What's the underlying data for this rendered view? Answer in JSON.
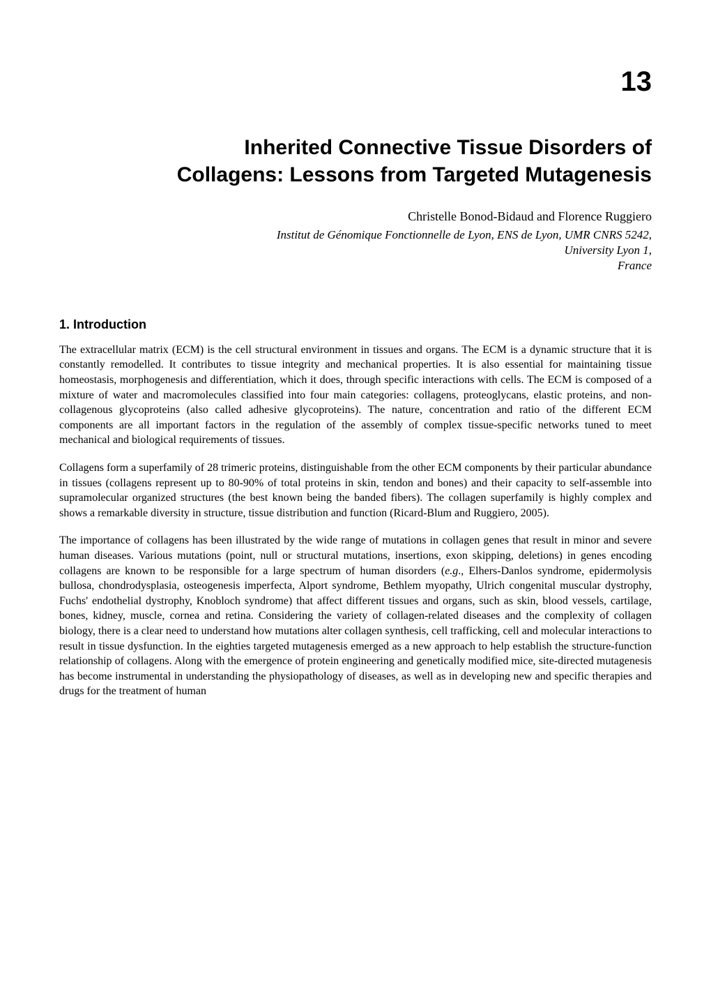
{
  "chapter": {
    "number": "13",
    "title_line1": "Inherited Connective Tissue Disorders of",
    "title_line2": "Collagens: Lessons from Targeted Mutagenesis",
    "authors": "Christelle Bonod-Bidaud and Florence Ruggiero",
    "affiliation_line1": "Institut de Génomique Fonctionnelle de Lyon, ENS de Lyon, UMR CNRS 5242,",
    "affiliation_line2": "University Lyon 1,",
    "affiliation_line3": "France"
  },
  "section1": {
    "heading": "1. Introduction",
    "para1": "The extracellular matrix (ECM) is the cell structural environment in tissues and organs. The ECM is a dynamic structure that it is constantly remodelled. It contributes to tissue integrity and mechanical properties. It is also essential for maintaining tissue homeostasis, morphogenesis and differentiation, which it does, through specific interactions with cells. The ECM is composed of a mixture of water and macromolecules classified into four main categories: collagens, proteoglycans, elastic proteins, and non-collagenous glycoproteins (also called adhesive glycoproteins). The nature, concentration and ratio of the different ECM components are all important factors in the regulation of the assembly of complex tissue-specific networks tuned to meet mechanical and biological requirements of tissues.",
    "para2": "Collagens form a superfamily of 28 trimeric proteins, distinguishable from the other ECM components by their particular abundance in tissues (collagens represent up to 80-90% of total proteins in skin, tendon and bones) and their capacity to self-assemble into supramolecular organized structures (the best known being the banded fibers). The collagen superfamily is highly complex and shows a remarkable diversity in structure, tissue distribution and function (Ricard-Blum and Ruggiero, 2005).",
    "para3_a": "The importance of collagens has been illustrated by the wide range of mutations in collagen genes that result in minor and severe human diseases. Various mutations (point, null or structural mutations, insertions, exon skipping, deletions) in genes encoding collagens are known to be responsible for a large spectrum of human disorders (",
    "para3_eg": "e.g",
    "para3_b": "., Elhers-Danlos syndrome, epidermolysis bullosa, chondrodysplasia, osteogenesis imperfecta, Alport syndrome, Bethlem myopathy, Ulrich congenital muscular dystrophy, Fuchs' endothelial dystrophy, Knobloch syndrome) that affect different tissues and organs, such as skin, blood vessels, cartilage, bones, kidney, muscle, cornea and retina. Considering the variety of collagen-related diseases and the complexity of collagen biology, there is a clear need to understand how mutations alter collagen synthesis, cell trafficking, cell and molecular interactions to result in tissue dysfunction.  In the eighties targeted mutagenesis emerged as a new approach to help establish the structure-function relationship of collagens. Along with the emergence of protein engineering and genetically modified mice, site-directed mutagenesis has become instrumental in understanding the physiopathology of diseases, as well as in developing new and specific therapies and drugs for the treatment of human"
  }
}
